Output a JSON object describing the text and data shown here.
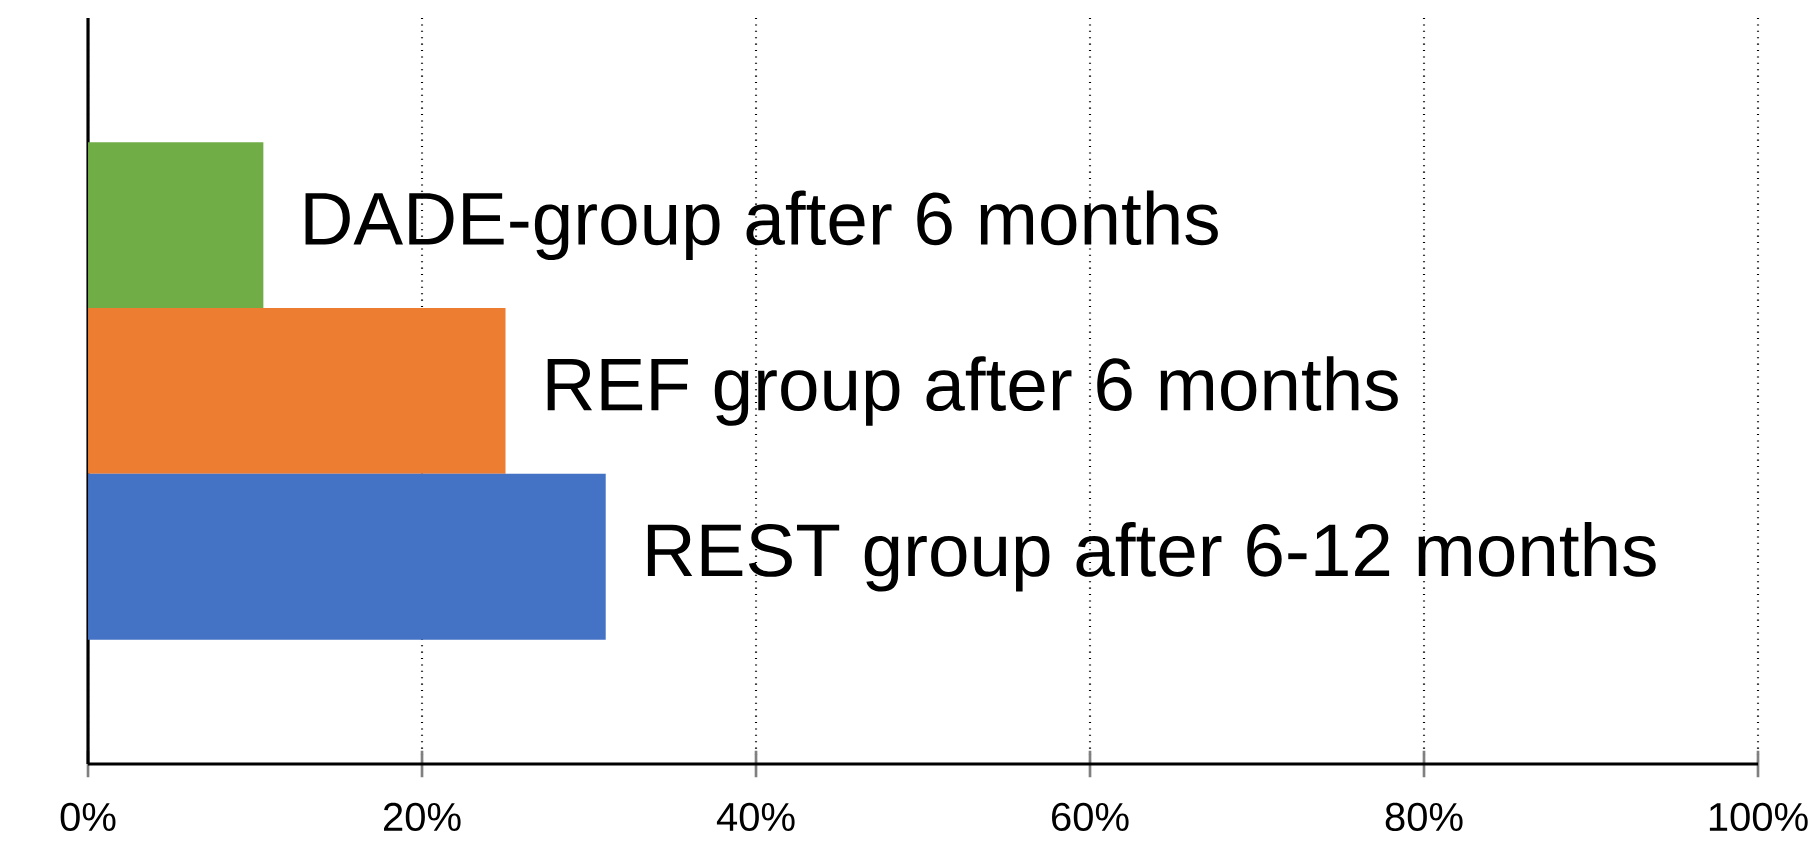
{
  "chart_data": {
    "type": "bar",
    "orientation": "horizontal",
    "categories": [
      "DADE-group after 6 months",
      "REF group after 6 months",
      "REST group after 6-12 months"
    ],
    "values": [
      10.5,
      25,
      31
    ],
    "colors": [
      "#70ad47",
      "#ed7d31",
      "#4472c4"
    ],
    "xlim": [
      0,
      100
    ],
    "xticks": [
      {
        "value": 0,
        "label": "0%"
      },
      {
        "value": 20,
        "label": "20%"
      },
      {
        "value": 40,
        "label": "40%"
      },
      {
        "value": 60,
        "label": "60%"
      },
      {
        "value": 80,
        "label": "80%"
      },
      {
        "value": 100,
        "label": "100%"
      }
    ],
    "grid": "x"
  }
}
